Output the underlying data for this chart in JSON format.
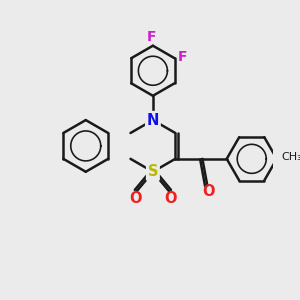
{
  "background_color": "#ebebeb",
  "bond_color": "#1a1a1a",
  "bond_width": 1.8,
  "atom_labels": {
    "N": {
      "color": "#1010ee",
      "fontsize": 10.5,
      "fontweight": "bold"
    },
    "S": {
      "color": "#b8b800",
      "fontsize": 10.5,
      "fontweight": "bold"
    },
    "O": {
      "color": "#ee2020",
      "fontsize": 10.5,
      "fontweight": "bold"
    },
    "F": {
      "color": "#cc22cc",
      "fontsize": 10.0,
      "fontweight": "bold"
    }
  },
  "figsize": [
    3.0,
    3.0
  ],
  "dpi": 100
}
